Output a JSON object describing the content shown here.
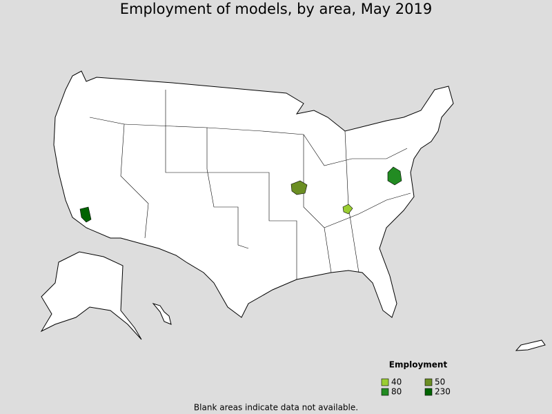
{
  "title": "Employment of models, by area, May 2019",
  "legend": {
    "title": "Employment",
    "items": [
      {
        "value": 40,
        "color": "#9acd32"
      },
      {
        "value": 50,
        "color": "#6b8e23"
      },
      {
        "value": 80,
        "color": "#228b22"
      },
      {
        "value": 230,
        "color": "#006400"
      }
    ]
  },
  "footnote": "Blank areas indicate data not available."
}
